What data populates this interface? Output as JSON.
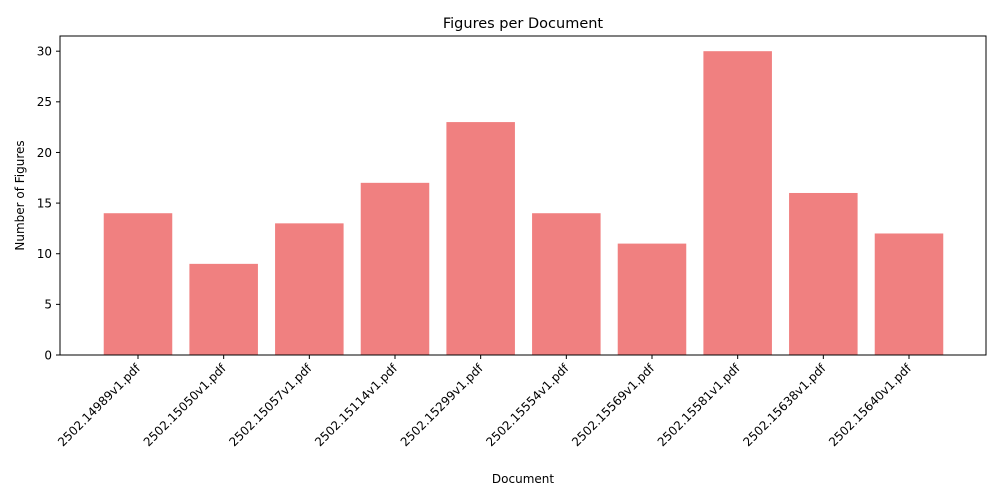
{
  "chart_data": {
    "type": "bar",
    "title": "Figures per Document",
    "xlabel": "Document",
    "ylabel": "Number of Figures",
    "categories": [
      "2502.14989v1.pdf",
      "2502.15050v1.pdf",
      "2502.15057v1.pdf",
      "2502.15114v1.pdf",
      "2502.15299v1.pdf",
      "2502.15554v1.pdf",
      "2502.15569v1.pdf",
      "2502.15581v1.pdf",
      "2502.15638v1.pdf",
      "2502.15640v1.pdf"
    ],
    "values": [
      14,
      9,
      13,
      17,
      23,
      14,
      11,
      30,
      16,
      12
    ],
    "ylim": [
      0,
      31.5
    ],
    "yticks": [
      0,
      5,
      10,
      15,
      20,
      25,
      30
    ],
    "bar_color": "#f08080",
    "grid": false,
    "legend": "none"
  }
}
